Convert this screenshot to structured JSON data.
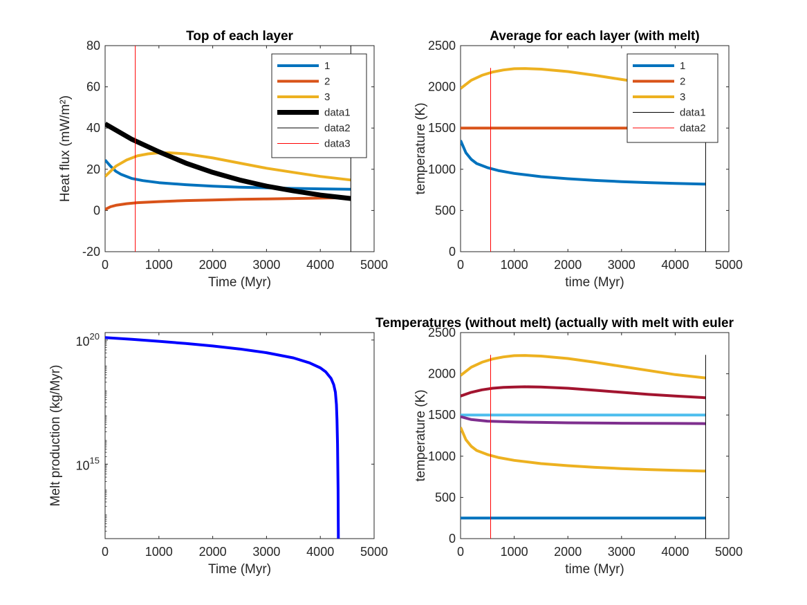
{
  "chart_data": [
    {
      "type": "line",
      "title": "Top of each layer",
      "xlabel": "Time (Myr)",
      "ylabel": "Heat flux (mW/m²)",
      "xlim": [
        0,
        5000
      ],
      "ylim": [
        -20,
        80
      ],
      "xticks": [
        0,
        1000,
        2000,
        3000,
        4000,
        5000
      ],
      "yticks": [
        -20,
        0,
        20,
        40,
        60,
        80
      ],
      "grid": false,
      "legend": "top-right",
      "series": [
        {
          "name": "1",
          "color": "#0072BD",
          "width": 4,
          "x": [
            0,
            100,
            200,
            300,
            500,
            700,
            1000,
            1500,
            2000,
            2500,
            3000,
            3500,
            4000,
            4567
          ],
          "y": [
            24.5,
            21.5,
            19,
            17.5,
            15.5,
            14.5,
            13.5,
            12.5,
            11.8,
            11.3,
            11,
            10.7,
            10.5,
            10.3
          ]
        },
        {
          "name": "2",
          "color": "#D95319",
          "width": 4,
          "x": [
            0,
            100,
            200,
            400,
            600,
            1000,
            1500,
            2000,
            2500,
            3000,
            3500,
            4000,
            4567
          ],
          "y": [
            0.5,
            1.8,
            2.5,
            3.3,
            3.8,
            4.3,
            4.8,
            5.1,
            5.4,
            5.6,
            5.8,
            6.0,
            6.2
          ]
        },
        {
          "name": "3",
          "color": "#EDB120",
          "width": 4,
          "x": [
            0,
            200,
            400,
            600,
            800,
            1000,
            1200,
            1500,
            2000,
            2500,
            3000,
            3500,
            4000,
            4567
          ],
          "y": [
            16.5,
            21.5,
            24.5,
            26.5,
            27.5,
            28,
            28,
            27.5,
            25.5,
            23,
            20.5,
            18.5,
            16.5,
            14.8
          ]
        },
        {
          "name": "data1",
          "color": "#000000",
          "width": 7,
          "x": [
            0,
            500,
            1000,
            1500,
            2000,
            2500,
            3000,
            3500,
            4000,
            4567
          ],
          "y": [
            42,
            34.5,
            28.5,
            23,
            18.5,
            14.8,
            11.8,
            9.5,
            7.5,
            5.8
          ]
        },
        {
          "name": "data2",
          "color": "#000000",
          "width": 1,
          "x": [
            4567,
            4567
          ],
          "y": [
            -20,
            80
          ]
        },
        {
          "name": "data3",
          "color": "#FF0000",
          "width": 1,
          "x": [
            560,
            560
          ],
          "y": [
            -20,
            80
          ]
        }
      ]
    },
    {
      "type": "line",
      "title": "Average for each layer (with melt)",
      "xlabel": "time (Myr)",
      "ylabel": "temperature (K)",
      "xlim": [
        0,
        5000
      ],
      "ylim": [
        0,
        2500
      ],
      "xticks": [
        0,
        1000,
        2000,
        3000,
        4000,
        5000
      ],
      "yticks": [
        0,
        500,
        1000,
        1500,
        2000,
        2500
      ],
      "grid": false,
      "legend": "top-right",
      "series": [
        {
          "name": "1",
          "color": "#0072BD",
          "width": 4,
          "x": [
            0,
            100,
            200,
            300,
            500,
            700,
            1000,
            1500,
            2000,
            2500,
            3000,
            3500,
            4000,
            4567
          ],
          "y": [
            1350,
            1200,
            1120,
            1070,
            1020,
            985,
            950,
            910,
            885,
            865,
            850,
            838,
            828,
            820
          ]
        },
        {
          "name": "2",
          "color": "#D95319",
          "width": 4,
          "x": [
            0,
            4567
          ],
          "y": [
            1500,
            1500
          ]
        },
        {
          "name": "3",
          "color": "#EDB120",
          "width": 4,
          "x": [
            0,
            200,
            400,
            600,
            800,
            1000,
            1200,
            1500,
            2000,
            2500,
            3000,
            3500,
            4000,
            4567
          ],
          "y": [
            1980,
            2080,
            2140,
            2180,
            2205,
            2220,
            2222,
            2215,
            2185,
            2140,
            2090,
            2040,
            1990,
            1950
          ]
        },
        {
          "name": "data1",
          "color": "#000000",
          "width": 1,
          "x": [
            4567,
            4567
          ],
          "y": [
            0,
            2230
          ]
        },
        {
          "name": "data2",
          "color": "#FF0000",
          "width": 1,
          "x": [
            560,
            560
          ],
          "y": [
            0,
            2230
          ]
        }
      ]
    },
    {
      "type": "line",
      "title": "",
      "xlabel": "Time (Myr)",
      "ylabel": "Melt production (kg/Myr)",
      "xlim": [
        0,
        5000
      ],
      "ylim_log10": [
        12,
        20.3
      ],
      "yscale": "log",
      "xticks": [
        0,
        1000,
        2000,
        3000,
        4000,
        5000
      ],
      "yticks_log10": [
        15,
        20
      ],
      "yticklabels": [
        {
          "base": "10",
          "exp": "15"
        },
        {
          "base": "10",
          "exp": "20"
        }
      ],
      "grid": false,
      "legend": "none",
      "series": [
        {
          "color": "#0000FF",
          "width": 4,
          "x": [
            0,
            500,
            1000,
            1500,
            2000,
            2500,
            3000,
            3500,
            3800,
            4000,
            4100,
            4200,
            4250,
            4280,
            4300,
            4310,
            4320,
            4330,
            4335
          ],
          "y_log10": [
            20.1,
            20.03,
            19.95,
            19.86,
            19.76,
            19.64,
            19.49,
            19.28,
            19.08,
            18.88,
            18.72,
            18.45,
            18.2,
            17.9,
            17.4,
            16.8,
            15.8,
            14,
            12
          ]
        }
      ]
    },
    {
      "type": "line",
      "title": "Temperatures (without melt) (actually with melt with euler",
      "xlabel": "time (Myr)",
      "ylabel": "temperature (K)",
      "xlim": [
        0,
        5000
      ],
      "ylim": [
        0,
        2500
      ],
      "xticks": [
        0,
        1000,
        2000,
        3000,
        4000,
        5000
      ],
      "yticks": [
        0,
        500,
        1000,
        1500,
        2000,
        2500
      ],
      "grid": false,
      "legend": "none",
      "series": [
        {
          "color": "#EDB120",
          "width": 4,
          "x": [
            0,
            200,
            400,
            600,
            800,
            1000,
            1200,
            1500,
            2000,
            2500,
            3000,
            3500,
            4000,
            4567
          ],
          "y": [
            1980,
            2080,
            2140,
            2180,
            2205,
            2220,
            2222,
            2215,
            2185,
            2140,
            2090,
            2040,
            1990,
            1950
          ]
        },
        {
          "color": "#A2142F",
          "width": 4,
          "x": [
            0,
            200,
            400,
            600,
            800,
            1000,
            1200,
            1500,
            2000,
            2500,
            3000,
            3500,
            4000,
            4567
          ],
          "y": [
            1730,
            1775,
            1805,
            1825,
            1835,
            1840,
            1842,
            1840,
            1825,
            1800,
            1775,
            1750,
            1730,
            1710
          ]
        },
        {
          "color": "#4DBEEE",
          "width": 4,
          "x": [
            0,
            4567
          ],
          "y": [
            1500,
            1500
          ]
        },
        {
          "color": "#7E2F8E",
          "width": 4,
          "x": [
            0,
            200,
            500,
            1000,
            1500,
            2000,
            3000,
            4000,
            4567
          ],
          "y": [
            1480,
            1445,
            1425,
            1415,
            1410,
            1405,
            1400,
            1398,
            1395
          ]
        },
        {
          "color": "#EDB120",
          "width": 4,
          "x": [
            0,
            100,
            200,
            300,
            500,
            700,
            1000,
            1500,
            2000,
            2500,
            3000,
            3500,
            4000,
            4567
          ],
          "y": [
            1350,
            1200,
            1120,
            1070,
            1020,
            985,
            950,
            910,
            885,
            865,
            850,
            838,
            828,
            820
          ]
        },
        {
          "color": "#0072BD",
          "width": 4,
          "x": [
            0,
            4567
          ],
          "y": [
            250,
            250
          ]
        },
        {
          "color": "#000000",
          "width": 1,
          "x": [
            4567,
            4567
          ],
          "y": [
            0,
            2230
          ]
        },
        {
          "color": "#FF0000",
          "width": 1,
          "x": [
            560,
            560
          ],
          "y": [
            0,
            2230
          ]
        }
      ]
    }
  ]
}
